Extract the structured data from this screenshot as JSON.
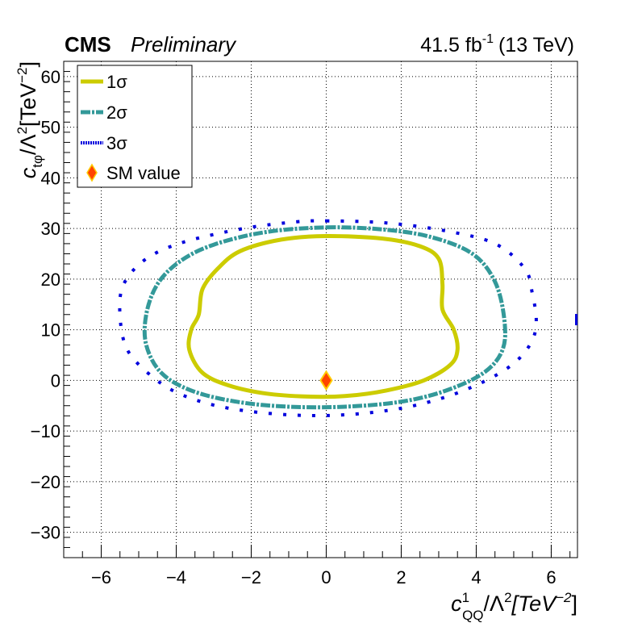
{
  "header": {
    "experiment": "CMS",
    "status": "Preliminary",
    "lumi": "41.5 fb",
    "lumi_exp": "-1",
    "energy": "(13 TeV)"
  },
  "chart_data": {
    "type": "line",
    "xlabel": "c",
    "xlabel_sup": "1",
    "xlabel_sub": "QQ",
    "xlabel_rest": "/Λ",
    "xlabel_rest_sup": "2",
    "xlabel_unit": "[TeV",
    "xlabel_unit_sup": "−2",
    "xlabel_close": "]",
    "ylabel": "c",
    "ylabel_sub": "tφ",
    "ylabel_rest": "/Λ",
    "ylabel_rest_sup": "2",
    "ylabel_unit": "[TeV",
    "ylabel_unit_sup": "−2",
    "ylabel_close": "]",
    "xlim": [
      -7,
      6.7
    ],
    "ylim": [
      -35,
      63
    ],
    "xticks": [
      -6,
      -4,
      -2,
      0,
      2,
      4,
      6
    ],
    "yticks": [
      -30,
      -20,
      -10,
      0,
      10,
      20,
      30,
      40,
      50,
      60
    ],
    "xtick_labels": [
      "−6",
      "−4",
      "−2",
      "0",
      "2",
      "4",
      "6"
    ],
    "ytick_labels": [
      "−30",
      "−20",
      "−10",
      "0",
      "10",
      "20",
      "30",
      "40",
      "50",
      "60"
    ],
    "grid": true,
    "legend_position": "top-left",
    "series": [
      {
        "name": "1σ",
        "color": "#cccc00",
        "style": "solid",
        "points": [
          [
            0,
            28.5
          ],
          [
            1.5,
            28.0
          ],
          [
            2.5,
            26.5
          ],
          [
            3.0,
            24.0
          ],
          [
            3.1,
            19.0
          ],
          [
            3.1,
            14.0
          ],
          [
            3.4,
            10.0
          ],
          [
            3.5,
            6.0
          ],
          [
            3.3,
            3.0
          ],
          [
            2.6,
            0.0
          ],
          [
            1.6,
            -2.0
          ],
          [
            0.5,
            -3.1
          ],
          [
            -0.5,
            -3.2
          ],
          [
            -1.6,
            -2.6
          ],
          [
            -2.6,
            -1.0
          ],
          [
            -3.3,
            1.5
          ],
          [
            -3.65,
            6.0
          ],
          [
            -3.6,
            10.0
          ],
          [
            -3.4,
            13.0
          ],
          [
            -3.3,
            18.0
          ],
          [
            -2.9,
            22.0
          ],
          [
            -2.3,
            25.5
          ],
          [
            -1.2,
            27.8
          ],
          [
            0,
            28.5
          ]
        ]
      },
      {
        "name": "2σ",
        "color": "#339999",
        "style": "dash-dot",
        "points": [
          [
            0,
            30.2
          ],
          [
            1.5,
            29.8
          ],
          [
            2.8,
            28.3
          ],
          [
            3.9,
            25.0
          ],
          [
            4.5,
            19.5
          ],
          [
            4.75,
            12.0
          ],
          [
            4.7,
            6.0
          ],
          [
            4.2,
            1.5
          ],
          [
            3.2,
            -2.0
          ],
          [
            2.0,
            -4.2
          ],
          [
            0.5,
            -5.2
          ],
          [
            -1.0,
            -5.2
          ],
          [
            -2.4,
            -4.2
          ],
          [
            -3.6,
            -2.0
          ],
          [
            -4.4,
            1.5
          ],
          [
            -4.8,
            7.0
          ],
          [
            -4.8,
            13.0
          ],
          [
            -4.5,
            19.0
          ],
          [
            -3.9,
            23.5
          ],
          [
            -3.0,
            26.8
          ],
          [
            -1.6,
            29.3
          ],
          [
            0,
            30.2
          ]
        ]
      },
      {
        "name": "3σ",
        "color": "#0000dd",
        "style": "dotted",
        "points": [
          [
            0,
            31.5
          ],
          [
            1.6,
            31.1
          ],
          [
            3.2,
            29.5
          ],
          [
            4.5,
            27.0
          ],
          [
            5.3,
            22.0
          ],
          [
            5.5,
            17.0
          ],
          [
            5.6,
            12.0
          ],
          [
            5.5,
            8.0
          ],
          [
            5.1,
            4.0
          ],
          [
            4.4,
            0.5
          ],
          [
            3.3,
            -3.0
          ],
          [
            2.0,
            -5.5
          ],
          [
            0.5,
            -6.8
          ],
          [
            -1.0,
            -6.8
          ],
          [
            -2.6,
            -5.5
          ],
          [
            -3.8,
            -3.0
          ],
          [
            -4.6,
            0.5
          ],
          [
            -5.3,
            6.0
          ],
          [
            -5.5,
            13.0
          ],
          [
            -5.4,
            19.0
          ],
          [
            -4.8,
            24.0
          ],
          [
            -3.8,
            27.3
          ],
          [
            -2.2,
            30.0
          ],
          [
            -0.8,
            31.3
          ],
          [
            0,
            31.5
          ]
        ]
      },
      {
        "name": "SM value",
        "color": "#ff4400",
        "style": "marker",
        "points": [
          [
            0,
            0
          ]
        ]
      }
    ],
    "extra_marks": [
      [
        6.7,
        12.0
      ]
    ]
  }
}
